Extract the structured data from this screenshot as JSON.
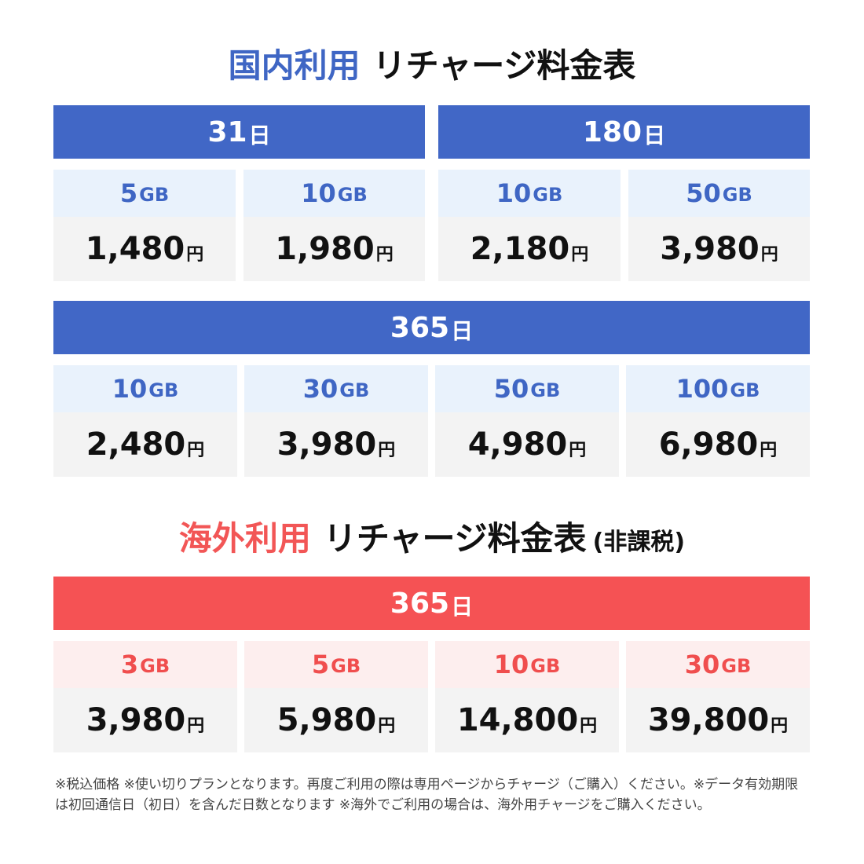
{
  "domestic": {
    "title_accent": "国内利用",
    "title_main": "リチャージ料金表",
    "plans_top": [
      {
        "days": "31",
        "day_unit": "日",
        "options": [
          {
            "data": "5",
            "data_unit": "GB",
            "price": "1,480",
            "price_unit": "円"
          },
          {
            "data": "10",
            "data_unit": "GB",
            "price": "1,980",
            "price_unit": "円"
          }
        ]
      },
      {
        "days": "180",
        "day_unit": "日",
        "options": [
          {
            "data": "10",
            "data_unit": "GB",
            "price": "2,180",
            "price_unit": "円"
          },
          {
            "data": "50",
            "data_unit": "GB",
            "price": "3,980",
            "price_unit": "円"
          }
        ]
      }
    ],
    "plan_year": {
      "days": "365",
      "day_unit": "日",
      "options": [
        {
          "data": "10",
          "data_unit": "GB",
          "price": "2,480",
          "price_unit": "円"
        },
        {
          "data": "30",
          "data_unit": "GB",
          "price": "3,980",
          "price_unit": "円"
        },
        {
          "data": "50",
          "data_unit": "GB",
          "price": "4,980",
          "price_unit": "円"
        },
        {
          "data": "100",
          "data_unit": "GB",
          "price": "6,980",
          "price_unit": "円"
        }
      ]
    }
  },
  "overseas": {
    "title_accent": "海外利用",
    "title_main": "リチャージ料金表",
    "title_note": "(非課税)",
    "plan_year": {
      "days": "365",
      "day_unit": "日",
      "options": [
        {
          "data": "3",
          "data_unit": "GB",
          "price": "3,980",
          "price_unit": "円"
        },
        {
          "data": "5",
          "data_unit": "GB",
          "price": "5,980",
          "price_unit": "円"
        },
        {
          "data": "10",
          "data_unit": "GB",
          "price": "14,800",
          "price_unit": "円"
        },
        {
          "data": "30",
          "data_unit": "GB",
          "price": "39,800",
          "price_unit": "円"
        }
      ]
    }
  },
  "footnote": "※税込価格 ※使い切りプランとなります。再度ご利用の際は専用ページからチャージ（ご購入）ください。※データ有効期限は初回通信日（初日）を含んだ日数となります ※海外でご利用の場合は、海外用チャージをご購入ください。",
  "colors": {
    "domestic_accent": "#4167c6",
    "overseas_accent": "#f55254",
    "domestic_cap_bg": "#e9f2fc",
    "overseas_cap_bg": "#fdeeee",
    "price_bg": "#f3f3f3"
  }
}
